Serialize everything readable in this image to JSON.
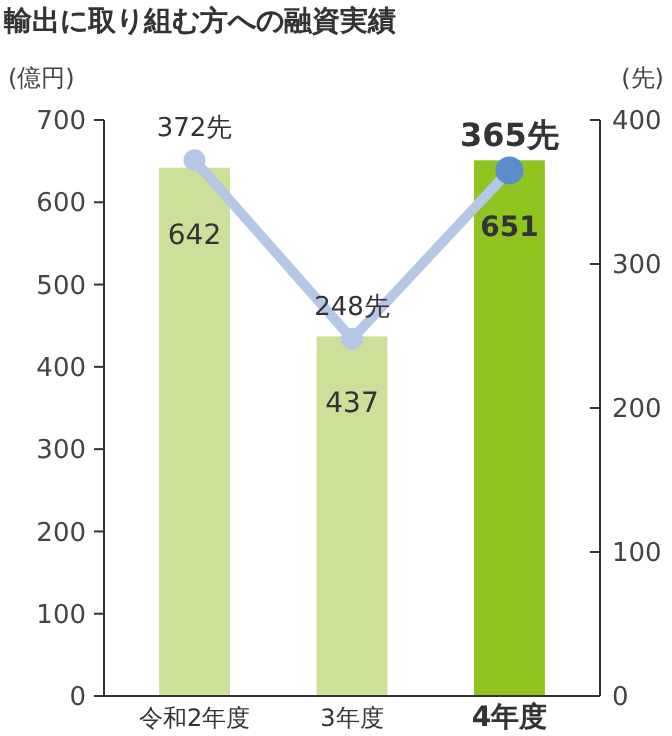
{
  "chart_data": {
    "type": "bar",
    "title": "輸出に取り組む方への融資実績",
    "ylabel": "(億円)",
    "y2label": "(先)",
    "categories": [
      "令和2年度",
      "3年度",
      "4年度"
    ],
    "series": [
      {
        "colors": [
          "#cde09a",
          "#cde09a",
          "#8fc31f"
        ],
        "values": [
          642,
          437,
          651
        ],
        "value_labels": [
          "642",
          "437",
          "651"
        ]
      },
      {
        "type": "line",
        "axis": "y2",
        "color": "#b4c7e7",
        "colors": [
          "#b4c7e7",
          "#b4c7e7",
          "#5b8ccc"
        ],
        "values": [
          372,
          248,
          365
        ],
        "value_labels": [
          "372先",
          "248先",
          "365先"
        ],
        "marker": "circle"
      }
    ],
    "ylim": [
      0,
      700
    ],
    "yticks": [
      0,
      100,
      200,
      300,
      400,
      500,
      600,
      700
    ],
    "y2lim": [
      0,
      400
    ],
    "y2ticks": [
      0,
      100,
      200,
      300,
      400
    ],
    "grid": false
  }
}
